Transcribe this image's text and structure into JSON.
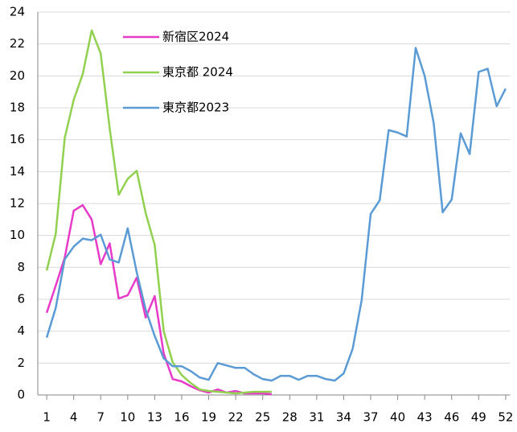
{
  "chart_data": {
    "type": "line",
    "x": [
      1,
      2,
      3,
      4,
      5,
      6,
      7,
      8,
      9,
      10,
      11,
      12,
      13,
      14,
      15,
      16,
      17,
      18,
      19,
      20,
      21,
      22,
      23,
      24,
      25,
      26,
      27,
      28,
      29,
      30,
      31,
      32,
      33,
      34,
      35,
      36,
      37,
      38,
      39,
      40,
      41,
      42,
      43,
      44,
      45,
      46,
      47,
      48,
      49,
      50,
      51,
      52
    ],
    "xlim": [
      0.5,
      52.5
    ],
    "xticks": [
      1,
      4,
      7,
      10,
      13,
      16,
      19,
      22,
      25,
      28,
      31,
      34,
      37,
      40,
      43,
      46,
      49,
      52
    ],
    "ylim": [
      0,
      24
    ],
    "yticks": [
      0,
      2,
      4,
      6,
      8,
      10,
      12,
      14,
      16,
      18,
      20,
      22,
      24
    ],
    "grid": true,
    "legend": "top-center",
    "series": [
      {
        "name": "新宿区2024",
        "color": "#e83ac8",
        "values": [
          5.15,
          6.85,
          8.6,
          11.55,
          11.9,
          11.0,
          8.2,
          9.5,
          6.05,
          6.25,
          7.35,
          4.85,
          6.2,
          2.6,
          1.0,
          0.85,
          0.55,
          0.3,
          0.15,
          0.35,
          0.15,
          0.25,
          0.1,
          0.1,
          0.1,
          0.05,
          null,
          null,
          null,
          null,
          null,
          null,
          null,
          null,
          null,
          null,
          null,
          null,
          null,
          null,
          null,
          null,
          null,
          null,
          null,
          null,
          null,
          null,
          null,
          null,
          null,
          null
        ]
      },
      {
        "name": "東京都 2024",
        "color": "#92d050",
        "values": [
          7.8,
          10.1,
          16.1,
          18.5,
          20.1,
          22.85,
          21.4,
          16.7,
          12.55,
          13.55,
          14.05,
          11.4,
          9.4,
          4.0,
          2.05,
          1.25,
          0.75,
          0.35,
          0.25,
          0.2,
          0.15,
          0.1,
          0.15,
          0.2,
          0.2,
          0.2,
          null,
          null,
          null,
          null,
          null,
          null,
          null,
          null,
          null,
          null,
          null,
          null,
          null,
          null,
          null,
          null,
          null,
          null,
          null,
          null,
          null,
          null,
          null,
          null,
          null,
          null
        ]
      },
      {
        "name": "東京都2023",
        "color": "#5b9bd5",
        "values": [
          3.6,
          5.45,
          8.5,
          9.3,
          9.8,
          9.7,
          10.05,
          8.5,
          8.3,
          10.45,
          7.7,
          5.35,
          3.7,
          2.3,
          1.8,
          1.8,
          1.5,
          1.1,
          0.95,
          2.0,
          1.85,
          1.7,
          1.7,
          1.3,
          1.0,
          0.9,
          1.2,
          1.2,
          0.95,
          1.2,
          1.2,
          1.0,
          0.9,
          1.35,
          2.9,
          5.95,
          11.35,
          12.2,
          16.6,
          16.45,
          16.2,
          21.75,
          20.0,
          17.05,
          11.45,
          12.25,
          16.4,
          15.1,
          20.25,
          20.45,
          18.1,
          19.2
        ]
      }
    ]
  }
}
